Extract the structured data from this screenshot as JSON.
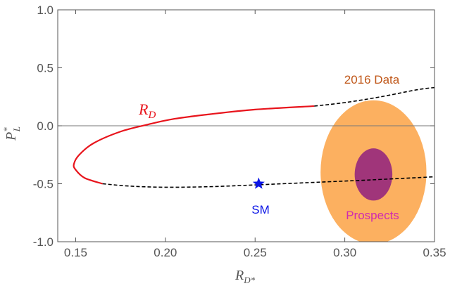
{
  "chart_data": {
    "type": "line",
    "xlabel": "R",
    "xlabel_sub": "D*",
    "ylabel": "P",
    "ylabel_sup": "*",
    "ylabel_sub": "L",
    "xlim": [
      0.14,
      0.35
    ],
    "ylim": [
      -1.0,
      1.0
    ],
    "xticks": [
      0.15,
      0.2,
      0.25,
      0.3,
      0.35
    ],
    "xtick_labels": [
      "0.15",
      "0.20",
      "0.25",
      "0.30",
      "0.35"
    ],
    "yticks": [
      -1.0,
      -0.5,
      0.0,
      0.5,
      1.0
    ],
    "ytick_labels": [
      "-1.0",
      "-0.5",
      "0.0",
      "0.5",
      "1.0"
    ],
    "grid": false,
    "reference_line_y": 0.0,
    "series": [
      {
        "name": "R_D",
        "label_main": "R",
        "label_sub": "D",
        "color": "#e8141c",
        "style": "solid",
        "x": [
          0.165,
          0.155,
          0.15,
          0.149,
          0.152,
          0.16,
          0.175,
          0.19,
          0.205,
          0.225,
          0.25,
          0.283
        ],
        "y": [
          -0.5,
          -0.45,
          -0.38,
          -0.33,
          -0.25,
          -0.15,
          -0.05,
          0.01,
          0.06,
          0.1,
          0.14,
          0.17
        ]
      },
      {
        "name": "dashed-extension-upper",
        "color": "#000000",
        "style": "dashed",
        "x": [
          0.283,
          0.3,
          0.32,
          0.34,
          0.35
        ],
        "y": [
          0.17,
          0.2,
          0.25,
          0.31,
          0.33
        ]
      },
      {
        "name": "dashed-extension-lower",
        "color": "#000000",
        "style": "dashed",
        "x": [
          0.165,
          0.18,
          0.2,
          0.225,
          0.25,
          0.28,
          0.31,
          0.35
        ],
        "y": [
          -0.5,
          -0.52,
          -0.53,
          -0.525,
          -0.51,
          -0.49,
          -0.47,
          -0.44
        ]
      }
    ],
    "points": [
      {
        "name": "SM",
        "label": "SM",
        "x": 0.252,
        "y": -0.5,
        "color": "#0a14e6",
        "marker": "star"
      }
    ],
    "regions": [
      {
        "name": "2016 Data",
        "label": "2016 Data",
        "cx": 0.316,
        "cy": -0.4,
        "rx": 0.0295,
        "ry": 0.62,
        "color": "#fcb060",
        "label_color": "#c0581a"
      },
      {
        "name": "Prospects",
        "label": "Prospects",
        "cx": 0.316,
        "cy": -0.42,
        "rx": 0.0105,
        "ry": 0.225,
        "color": "#a0357a",
        "label_color": "#d02ab0"
      }
    ]
  }
}
